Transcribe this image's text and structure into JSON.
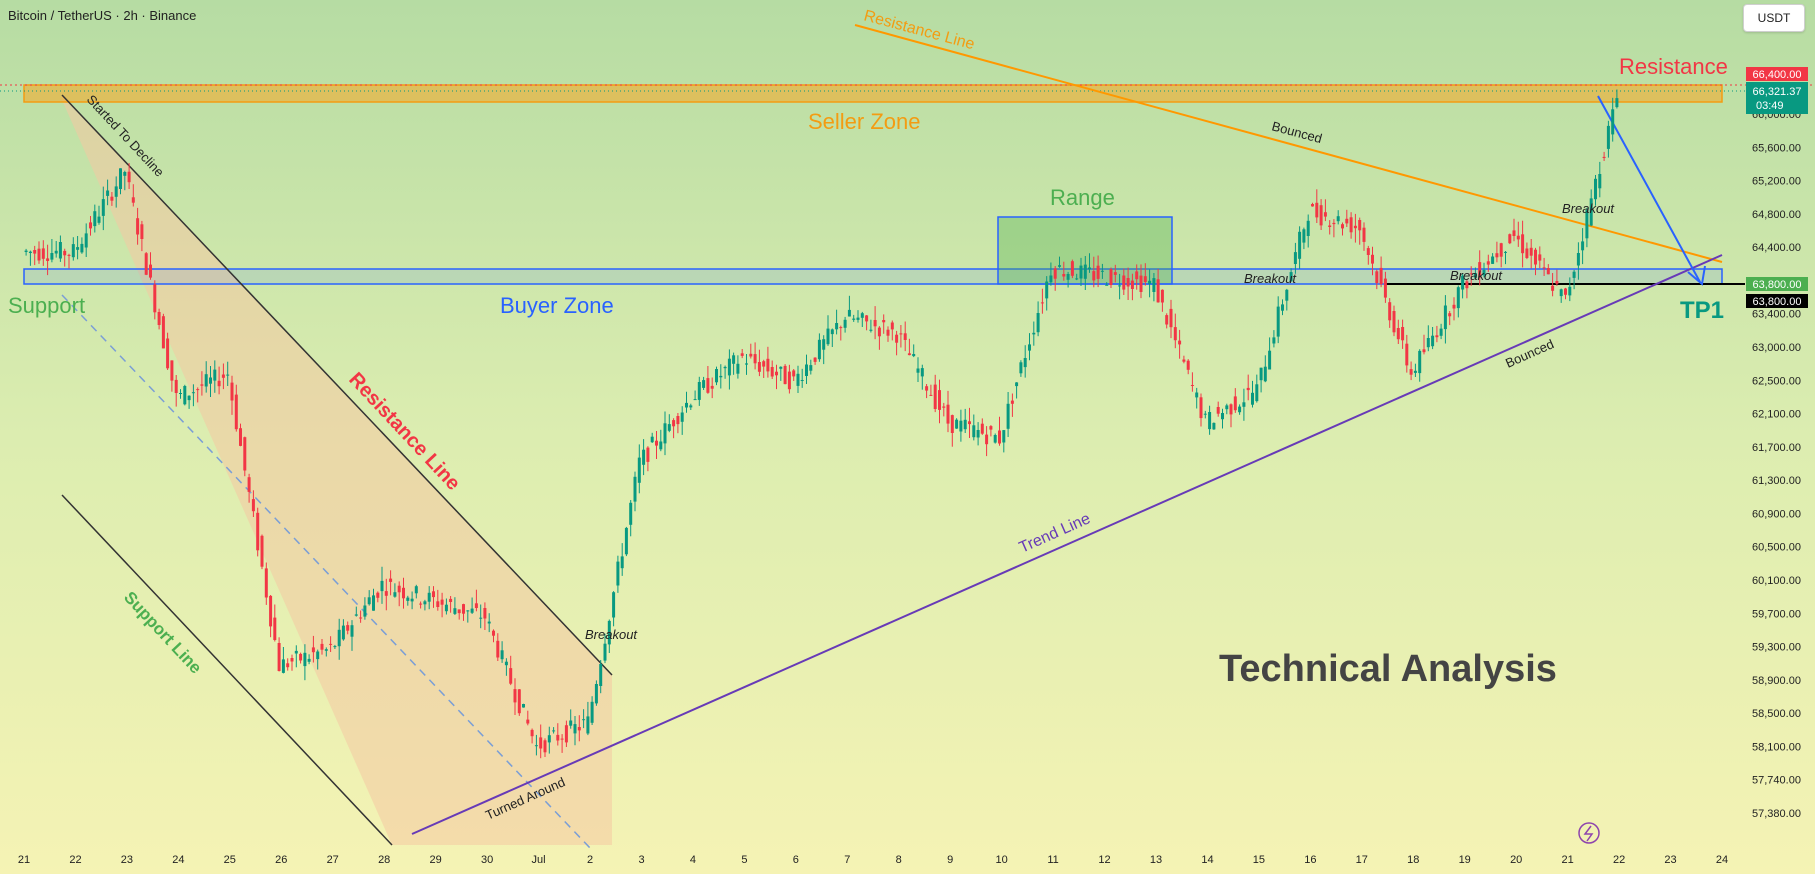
{
  "header": {
    "symbol_title": "Bitcoin / TetherUS · 2h · Binance",
    "currency_button": "USDT"
  },
  "colors": {
    "up": "#089981",
    "down": "#f23645",
    "seller_zone": "#f5a623",
    "buyer_zone": "#2962ff",
    "range": "#4caf50",
    "trend_line": "#673ab7",
    "resistance_line_upper": "#ff9800",
    "channel": "#333333"
  },
  "chart_data": {
    "type": "candlestick",
    "symbol": "Bitcoin / TetherUS",
    "interval": "2h",
    "exchange": "Binance",
    "x_tick_labels": [
      "21",
      "22",
      "23",
      "24",
      "25",
      "26",
      "27",
      "28",
      "29",
      "30",
      "Jul",
      "2",
      "3",
      "4",
      "5",
      "6",
      "7",
      "8",
      "9",
      "10",
      "11",
      "12",
      "13",
      "14",
      "15",
      "16",
      "17",
      "18",
      "19",
      "20",
      "21",
      "22",
      "23",
      "24"
    ],
    "y_tick_labels": [
      "66,000.00",
      "65,600.00",
      "65,200.00",
      "64,800.00",
      "64,400.00",
      "64,000.00",
      "63,400.00",
      "63,000.00",
      "62,500.00",
      "62,100.00",
      "61,700.00",
      "61,300.00",
      "60,900.00",
      "60,500.00",
      "60,100.00",
      "59,700.00",
      "59,300.00",
      "58,900.00",
      "58,500.00",
      "58,100.00",
      "57,740.00",
      "57,380.00"
    ],
    "price_labels": {
      "resistance": "66,400.00",
      "last_price": "66,321.37",
      "countdown": "03:49",
      "buyer_zone_top": "63,800.00",
      "tp1_line": "63,800.00"
    },
    "approx_daily_closes": [
      {
        "day": "21",
        "close": 64300
      },
      {
        "day": "22",
        "close": 65300
      },
      {
        "day": "23",
        "close": 62500
      },
      {
        "day": "24",
        "close": 62800
      },
      {
        "day": "25",
        "close": 59200
      },
      {
        "day": "26",
        "close": 59400
      },
      {
        "day": "27",
        "close": 60200
      },
      {
        "day": "28",
        "close": 60000
      },
      {
        "day": "29",
        "close": 59800
      },
      {
        "day": "30",
        "close": 58200
      },
      {
        "day": "Jul",
        "close": 58500
      },
      {
        "day": "2",
        "close": 61700
      },
      {
        "day": "3",
        "close": 62500
      },
      {
        "day": "4",
        "close": 63000
      },
      {
        "day": "5",
        "close": 62700
      },
      {
        "day": "6",
        "close": 63500
      },
      {
        "day": "7",
        "close": 63300
      },
      {
        "day": "8",
        "close": 62200
      },
      {
        "day": "9",
        "close": 62000
      },
      {
        "day": "10",
        "close": 64100
      },
      {
        "day": "11",
        "close": 64000
      },
      {
        "day": "12",
        "close": 63900
      },
      {
        "day": "13",
        "close": 62200
      },
      {
        "day": "14",
        "close": 62600
      },
      {
        "day": "15",
        "close": 64800
      },
      {
        "day": "16",
        "close": 64600
      },
      {
        "day": "17",
        "close": 62800
      },
      {
        "day": "18",
        "close": 63900
      },
      {
        "day": "19",
        "close": 64500
      },
      {
        "day": "20",
        "close": 63700
      },
      {
        "day": "21",
        "close": 66200
      }
    ],
    "annotations": {
      "seller_zone": "Seller Zone",
      "resistance": "Resistance",
      "resistance_line_top": "Resistance Line",
      "resistance_line_channel": "Resistance Line",
      "support": "Support",
      "buyer_zone": "Buyer Zone",
      "range": "Range",
      "tp1": "TP1",
      "started_to_decline": "Started To Decline",
      "support_line": "Support Line",
      "trend_line": "Trend Line",
      "turned_around": "Turned Around",
      "breakout_1": "Breakout",
      "breakout_2": "Breakout",
      "breakout_3": "Breakout",
      "breakout_4": "Breakout",
      "bounced_1": "Bounced",
      "bounced_2": "Bounced",
      "watermark": "Technical Analysis"
    }
  }
}
